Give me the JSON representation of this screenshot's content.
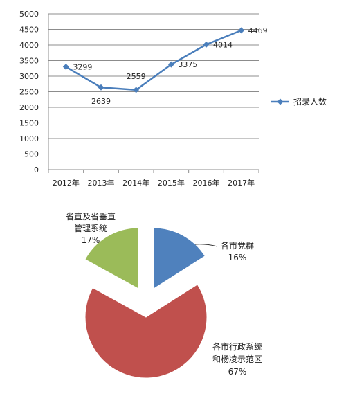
{
  "chart_data": [
    {
      "type": "line",
      "title": "",
      "xlabel": "",
      "ylabel": "",
      "categories": [
        "2012年",
        "2013年",
        "2014年",
        "2015年",
        "2016年",
        "2017年"
      ],
      "series": [
        {
          "name": "招录人数",
          "values": [
            3299,
            2639,
            2559,
            3375,
            4014,
            4469
          ],
          "color": "#4a7ebb"
        }
      ],
      "data_labels": [
        "3299",
        "2639",
        "2559",
        "3375",
        "4014",
        "4469"
      ],
      "ylim": [
        0,
        5000
      ],
      "yticks": [
        "0",
        "500",
        "1000",
        "1500",
        "2000",
        "2500",
        "3000",
        "3500",
        "4000",
        "4500",
        "5000"
      ],
      "grid": true,
      "legend": "right"
    },
    {
      "type": "pie",
      "title": "",
      "exploded": true,
      "slices": [
        {
          "name": "各市党群",
          "label_lines": [
            "各市党群"
          ],
          "pct": "16%",
          "value": 16,
          "color": "#4f81bd"
        },
        {
          "name": "各市行政系统和杨凌示范区",
          "label_lines": [
            "各市行政系统",
            "和杨凌示范区"
          ],
          "pct": "67%",
          "value": 67,
          "color": "#c0504d"
        },
        {
          "name": "省直及省垂直管理系统",
          "label_lines": [
            "省直及省垂直",
            "管理系统"
          ],
          "pct": "17%",
          "value": 17,
          "color": "#9bbb59"
        }
      ]
    }
  ]
}
